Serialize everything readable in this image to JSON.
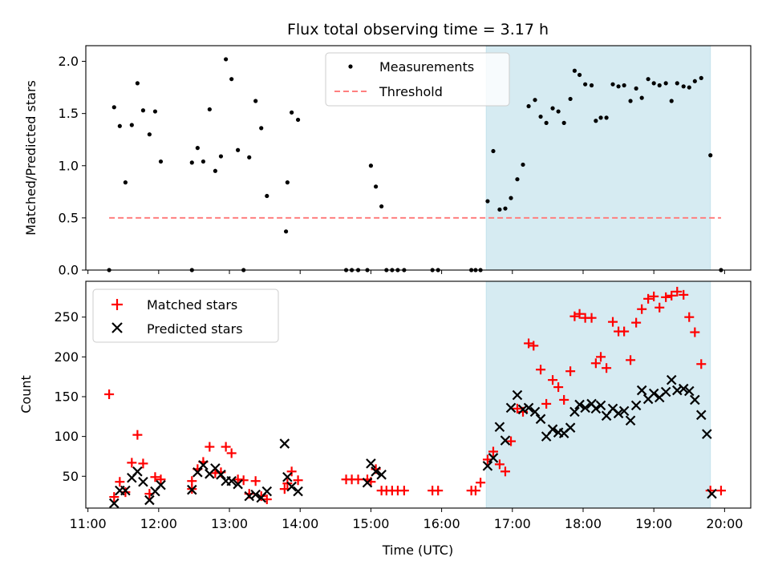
{
  "title": "Flux total observing time = 3.17 h",
  "colors": {
    "measurement": "#000000",
    "threshold": "#ff7f7f",
    "matched": "#ff0000",
    "predicted": "#000000",
    "shade": "#add8e6"
  },
  "chart_data": [
    {
      "type": "scatter",
      "panel": "top",
      "ylabel": "Matched/Predicted stars",
      "xlim": [
        10.97,
        20.37
      ],
      "ylim": [
        0,
        2.15
      ],
      "yticks": [
        0.0,
        0.5,
        1.0,
        1.5,
        2.0
      ],
      "ytick_labels": [
        "0.0",
        "0.5",
        "1.0",
        "1.5",
        "2.0"
      ],
      "shaded_span": [
        16.63,
        19.8
      ],
      "legend": {
        "placement": "top-center",
        "entries": [
          "Measurements",
          "Threshold"
        ]
      },
      "threshold": {
        "name": "Threshold",
        "value": 0.5,
        "x_range": [
          11.3,
          19.95
        ]
      },
      "series": [
        {
          "name": "Measurements",
          "points": [
            [
              11.3,
              0.0
            ],
            [
              11.37,
              1.56
            ],
            [
              11.45,
              1.38
            ],
            [
              11.53,
              0.84
            ],
            [
              11.62,
              1.39
            ],
            [
              11.7,
              1.79
            ],
            [
              11.78,
              1.53
            ],
            [
              11.87,
              1.3
            ],
            [
              11.95,
              1.52
            ],
            [
              12.03,
              1.04
            ],
            [
              12.47,
              1.03
            ],
            [
              12.47,
              0.0
            ],
            [
              12.55,
              1.17
            ],
            [
              12.63,
              1.04
            ],
            [
              12.72,
              1.54
            ],
            [
              12.8,
              0.95
            ],
            [
              12.88,
              1.09
            ],
            [
              12.95,
              2.02
            ],
            [
              13.03,
              1.83
            ],
            [
              13.12,
              1.15
            ],
            [
              13.2,
              0.0
            ],
            [
              13.28,
              1.08
            ],
            [
              13.37,
              1.62
            ],
            [
              13.45,
              1.36
            ],
            [
              13.53,
              0.71
            ],
            [
              13.8,
              0.37
            ],
            [
              13.82,
              0.84
            ],
            [
              13.88,
              1.51
            ],
            [
              13.97,
              1.44
            ],
            [
              14.65,
              0.0
            ],
            [
              14.73,
              0.0
            ],
            [
              14.82,
              0.0
            ],
            [
              14.95,
              0.0
            ],
            [
              15.0,
              1.0
            ],
            [
              15.07,
              0.8
            ],
            [
              15.15,
              0.61
            ],
            [
              15.22,
              0.0
            ],
            [
              15.3,
              0.0
            ],
            [
              15.38,
              0.0
            ],
            [
              15.47,
              0.0
            ],
            [
              15.87,
              0.0
            ],
            [
              15.95,
              0.0
            ],
            [
              16.42,
              0.0
            ],
            [
              16.48,
              0.0
            ],
            [
              16.55,
              0.0
            ],
            [
              16.65,
              0.66
            ],
            [
              16.73,
              1.14
            ],
            [
              16.82,
              0.58
            ],
            [
              16.9,
              0.59
            ],
            [
              16.98,
              0.69
            ],
            [
              17.07,
              0.87
            ],
            [
              17.15,
              1.01
            ],
            [
              17.23,
              1.57
            ],
            [
              17.32,
              1.63
            ],
            [
              17.4,
              1.47
            ],
            [
              17.48,
              1.41
            ],
            [
              17.57,
              1.55
            ],
            [
              17.65,
              1.52
            ],
            [
              17.73,
              1.41
            ],
            [
              17.82,
              1.64
            ],
            [
              17.88,
              1.91
            ],
            [
              17.95,
              1.87
            ],
            [
              18.03,
              1.78
            ],
            [
              18.12,
              1.77
            ],
            [
              18.18,
              1.43
            ],
            [
              18.25,
              1.46
            ],
            [
              18.33,
              1.46
            ],
            [
              18.42,
              1.78
            ],
            [
              18.5,
              1.76
            ],
            [
              18.58,
              1.77
            ],
            [
              18.67,
              1.62
            ],
            [
              18.75,
              1.74
            ],
            [
              18.83,
              1.65
            ],
            [
              18.92,
              1.83
            ],
            [
              19.0,
              1.79
            ],
            [
              19.08,
              1.77
            ],
            [
              19.17,
              1.79
            ],
            [
              19.25,
              1.62
            ],
            [
              19.33,
              1.79
            ],
            [
              19.42,
              1.76
            ],
            [
              19.5,
              1.75
            ],
            [
              19.58,
              1.81
            ],
            [
              19.67,
              1.84
            ],
            [
              19.8,
              1.1
            ],
            [
              19.95,
              0.0
            ]
          ]
        }
      ]
    },
    {
      "type": "scatter",
      "panel": "bottom",
      "xlabel": "Time (UTC)",
      "ylabel": "Count",
      "xlim": [
        10.97,
        20.37
      ],
      "ylim": [
        10,
        295
      ],
      "xticks": [
        11,
        12,
        13,
        14,
        15,
        16,
        17,
        18,
        19,
        20
      ],
      "xtick_labels": [
        "11:00",
        "12:00",
        "13:00",
        "14:00",
        "15:00",
        "16:00",
        "17:00",
        "18:00",
        "19:00",
        "20:00"
      ],
      "yticks": [
        50,
        100,
        150,
        200,
        250
      ],
      "ytick_labels": [
        "50",
        "100",
        "150",
        "200",
        "250"
      ],
      "shaded_span": [
        16.63,
        19.8
      ],
      "legend": {
        "placement": "top-left",
        "entries": [
          "Matched stars",
          "Predicted stars"
        ]
      },
      "series": [
        {
          "name": "Matched stars",
          "points": [
            [
              11.3,
              153
            ],
            [
              11.37,
              24
            ],
            [
              11.45,
              43
            ],
            [
              11.53,
              30
            ],
            [
              11.62,
              67
            ],
            [
              11.7,
              102
            ],
            [
              11.78,
              66
            ],
            [
              11.87,
              28
            ],
            [
              11.95,
              49
            ],
            [
              12.03,
              46
            ],
            [
              12.47,
              34
            ],
            [
              12.47,
              44
            ],
            [
              12.55,
              59
            ],
            [
              12.63,
              68
            ],
            [
              12.72,
              87
            ],
            [
              12.8,
              54
            ],
            [
              12.88,
              55
            ],
            [
              12.95,
              87
            ],
            [
              13.03,
              79
            ],
            [
              13.12,
              46
            ],
            [
              13.2,
              45
            ],
            [
              13.28,
              28
            ],
            [
              13.37,
              44
            ],
            [
              13.45,
              25
            ],
            [
              13.53,
              21
            ],
            [
              13.78,
              34
            ],
            [
              13.82,
              41
            ],
            [
              13.88,
              56
            ],
            [
              13.97,
              45
            ],
            [
              14.65,
              46
            ],
            [
              14.73,
              46
            ],
            [
              14.82,
              46
            ],
            [
              14.95,
              46
            ],
            [
              15.0,
              43
            ],
            [
              15.07,
              59
            ],
            [
              15.15,
              32
            ],
            [
              15.22,
              32
            ],
            [
              15.3,
              32
            ],
            [
              15.38,
              32
            ],
            [
              15.47,
              32
            ],
            [
              15.87,
              32
            ],
            [
              15.95,
              32
            ],
            [
              16.42,
              32
            ],
            [
              16.48,
              32
            ],
            [
              16.55,
              42
            ],
            [
              16.65,
              71
            ],
            [
              16.73,
              81
            ],
            [
              16.82,
              65
            ],
            [
              16.9,
              56
            ],
            [
              16.98,
              94
            ],
            [
              17.07,
              135
            ],
            [
              17.15,
              131
            ],
            [
              17.23,
              217
            ],
            [
              17.3,
              214
            ],
            [
              17.4,
              184
            ],
            [
              17.48,
              141
            ],
            [
              17.57,
              171
            ],
            [
              17.65,
              162
            ],
            [
              17.73,
              146
            ],
            [
              17.82,
              182
            ],
            [
              17.88,
              251
            ],
            [
              17.95,
              254
            ],
            [
              18.03,
              249
            ],
            [
              18.12,
              249
            ],
            [
              18.18,
              192
            ],
            [
              18.25,
              200
            ],
            [
              18.33,
              186
            ],
            [
              18.42,
              244
            ],
            [
              18.5,
              232
            ],
            [
              18.58,
              232
            ],
            [
              18.67,
              196
            ],
            [
              18.75,
              243
            ],
            [
              18.83,
              260
            ],
            [
              18.92,
              273
            ],
            [
              19.0,
              276
            ],
            [
              19.08,
              262
            ],
            [
              19.17,
              275
            ],
            [
              19.25,
              277
            ],
            [
              19.33,
              282
            ],
            [
              19.42,
              278
            ],
            [
              19.5,
              250
            ],
            [
              19.58,
              231
            ],
            [
              19.67,
              191
            ],
            [
              19.8,
              32
            ],
            [
              19.95,
              32
            ]
          ]
        },
        {
          "name": "Predicted stars",
          "points": [
            [
              11.37,
              16
            ],
            [
              11.45,
              32
            ],
            [
              11.53,
              32
            ],
            [
              11.62,
              48
            ],
            [
              11.7,
              56
            ],
            [
              11.78,
              43
            ],
            [
              11.87,
              20
            ],
            [
              11.95,
              31
            ],
            [
              12.03,
              39
            ],
            [
              12.47,
              33
            ],
            [
              12.55,
              55
            ],
            [
              12.63,
              64
            ],
            [
              12.72,
              53
            ],
            [
              12.8,
              60
            ],
            [
              12.88,
              52
            ],
            [
              12.95,
              44
            ],
            [
              13.03,
              44
            ],
            [
              13.12,
              40
            ],
            [
              13.28,
              25
            ],
            [
              13.37,
              27
            ],
            [
              13.45,
              23
            ],
            [
              13.53,
              31
            ],
            [
              13.78,
              91
            ],
            [
              13.82,
              49
            ],
            [
              13.88,
              37
            ],
            [
              13.97,
              31
            ],
            [
              14.95,
              42
            ],
            [
              15.0,
              66
            ],
            [
              15.07,
              56
            ],
            [
              15.15,
              52
            ],
            [
              16.65,
              63
            ],
            [
              16.73,
              73
            ],
            [
              16.82,
              112
            ],
            [
              16.9,
              95
            ],
            [
              16.98,
              136
            ],
            [
              17.07,
              152
            ],
            [
              17.15,
              134
            ],
            [
              17.23,
              136
            ],
            [
              17.32,
              131
            ],
            [
              17.4,
              122
            ],
            [
              17.48,
              100
            ],
            [
              17.57,
              109
            ],
            [
              17.65,
              105
            ],
            [
              17.73,
              104
            ],
            [
              17.82,
              111
            ],
            [
              17.88,
              131
            ],
            [
              17.95,
              140
            ],
            [
              18.03,
              136
            ],
            [
              18.12,
              141
            ],
            [
              18.18,
              135
            ],
            [
              18.25,
              139
            ],
            [
              18.33,
              126
            ],
            [
              18.42,
              135
            ],
            [
              18.5,
              129
            ],
            [
              18.58,
              132
            ],
            [
              18.67,
              120
            ],
            [
              18.75,
              139
            ],
            [
              18.83,
              158
            ],
            [
              18.92,
              147
            ],
            [
              19.0,
              154
            ],
            [
              19.08,
              149
            ],
            [
              19.17,
              156
            ],
            [
              19.25,
              171
            ],
            [
              19.33,
              158
            ],
            [
              19.42,
              160
            ],
            [
              19.5,
              157
            ],
            [
              19.58,
              146
            ],
            [
              19.67,
              127
            ],
            [
              19.75,
              103
            ],
            [
              19.82,
              28
            ]
          ]
        }
      ]
    }
  ]
}
